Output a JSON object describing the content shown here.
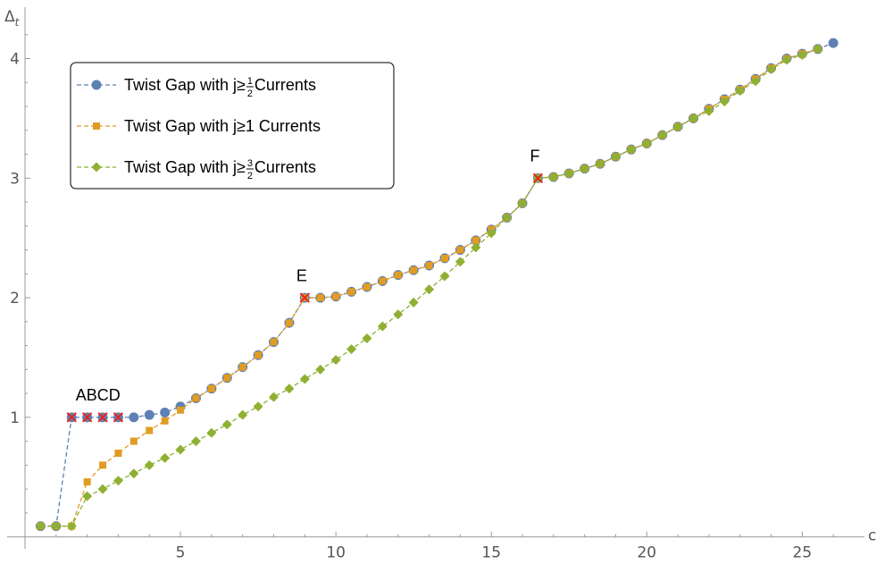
{
  "chart_data": {
    "type": "line",
    "title": "",
    "xlabel": "c",
    "ylabel": "Δt",
    "ylabel_main": "Δ",
    "ylabel_sub": "t",
    "xlim": [
      0,
      27
    ],
    "ylim": [
      -0.1,
      4.4
    ],
    "xticks": [
      5,
      10,
      15,
      20,
      25
    ],
    "yticks": [
      1,
      2,
      3,
      4
    ],
    "grid": false,
    "legend_position": "top-left",
    "series": [
      {
        "name": "Twist Gap with j≥½ Currents",
        "legend_prefix": "Twist Gap with j≥",
        "legend_frac": [
          "1",
          "2"
        ],
        "legend_suffix": " Currents",
        "color": "#5e81b5",
        "marker": "circle",
        "x": [
          0.5,
          1,
          1.5,
          2,
          2.5,
          3,
          3.5,
          4,
          4.5,
          5,
          5.5,
          6,
          6.5,
          7,
          7.5,
          8,
          8.5,
          9,
          9.5,
          10,
          10.5,
          11,
          11.5,
          12,
          12.5,
          13,
          13.5,
          14,
          14.5,
          15,
          15.5,
          16,
          16.5,
          17,
          17.5,
          18,
          18.5,
          19,
          19.5,
          20,
          20.5,
          21,
          21.5,
          22,
          22.5,
          23,
          23.5,
          24,
          24.5,
          25,
          25.5,
          26
        ],
        "y": [
          0.09,
          0.09,
          1.0,
          1.0,
          1.0,
          1.0,
          1.0,
          1.02,
          1.04,
          1.09,
          1.16,
          1.24,
          1.33,
          1.42,
          1.52,
          1.63,
          1.79,
          2.0,
          2.0,
          2.01,
          2.05,
          2.09,
          2.14,
          2.19,
          2.23,
          2.27,
          2.33,
          2.4,
          2.48,
          2.57,
          2.67,
          2.79,
          3.0,
          3.01,
          3.04,
          3.08,
          3.12,
          3.18,
          3.24,
          3.29,
          3.36,
          3.43,
          3.5,
          3.58,
          3.66,
          3.74,
          3.83,
          3.92,
          4.0,
          4.04,
          4.08,
          4.13
        ]
      },
      {
        "name": "Twist Gap with j≥1 Currents",
        "legend_prefix": "Twist Gap with j≥1 Currents",
        "legend_frac": null,
        "legend_suffix": "",
        "color": "#e19c24",
        "marker": "square",
        "x": [
          0.5,
          1,
          1.5,
          2,
          2.5,
          3,
          3.5,
          4,
          4.5,
          5,
          5.5,
          6,
          6.5,
          7,
          7.5,
          8,
          8.5,
          9,
          9.5,
          10,
          10.5,
          11,
          11.5,
          12,
          12.5,
          13,
          13.5,
          14,
          14.5,
          15,
          15.5,
          16,
          16.5,
          17,
          17.5,
          18,
          18.5,
          19,
          19.5,
          20,
          20.5,
          21,
          21.5,
          22,
          22.5,
          23,
          23.5,
          24,
          24.5,
          25,
          25.5
        ],
        "y": [
          0.09,
          0.09,
          0.09,
          0.46,
          0.6,
          0.7,
          0.8,
          0.89,
          0.97,
          1.06,
          1.16,
          1.24,
          1.33,
          1.42,
          1.52,
          1.63,
          1.79,
          2.0,
          2.0,
          2.01,
          2.05,
          2.09,
          2.14,
          2.19,
          2.23,
          2.27,
          2.33,
          2.4,
          2.48,
          2.57,
          2.67,
          2.79,
          3.0,
          3.01,
          3.04,
          3.08,
          3.12,
          3.18,
          3.24,
          3.29,
          3.36,
          3.43,
          3.5,
          3.58,
          3.66,
          3.74,
          3.83,
          3.92,
          4.0,
          4.04,
          4.08
        ]
      },
      {
        "name": "Twist Gap with j≥3/2 Currents",
        "legend_prefix": "Twist Gap with j≥",
        "legend_frac": [
          "3",
          "2"
        ],
        "legend_suffix": " Currents",
        "color": "#8fb032",
        "marker": "diamond",
        "x": [
          0.5,
          1,
          1.5,
          2,
          2.5,
          3,
          3.5,
          4,
          4.5,
          5,
          5.5,
          6,
          6.5,
          7,
          7.5,
          8,
          8.5,
          9,
          9.5,
          10,
          10.5,
          11,
          11.5,
          12,
          12.5,
          13,
          13.5,
          14,
          14.5,
          15,
          15.5,
          16,
          16.5,
          17,
          17.5,
          18,
          18.5,
          19,
          19.5,
          20,
          20.5,
          21,
          21.5,
          22,
          22.5,
          23,
          23.5,
          24,
          24.5,
          25,
          25.5
        ],
        "y": [
          0.09,
          0.09,
          0.09,
          0.34,
          0.4,
          0.47,
          0.53,
          0.6,
          0.66,
          0.73,
          0.8,
          0.87,
          0.94,
          1.02,
          1.09,
          1.17,
          1.24,
          1.32,
          1.4,
          1.48,
          1.57,
          1.66,
          1.76,
          1.86,
          1.96,
          2.07,
          2.18,
          2.3,
          2.42,
          2.54,
          2.67,
          2.79,
          3.0,
          3.01,
          3.04,
          3.08,
          3.12,
          3.18,
          3.24,
          3.29,
          3.36,
          3.43,
          3.5,
          3.56,
          3.64,
          3.73,
          3.81,
          3.91,
          3.99,
          4.03,
          4.08
        ]
      }
    ],
    "marked_points": [
      {
        "x": 1.5,
        "y": 1.0
      },
      {
        "x": 2,
        "y": 1.0
      },
      {
        "x": 2.5,
        "y": 1.0
      },
      {
        "x": 3,
        "y": 1.0
      },
      {
        "x": 9,
        "y": 2.0
      },
      {
        "x": 16.5,
        "y": 3.0
      }
    ],
    "marked_color": "#e8241c",
    "annotations": [
      {
        "text": "ABCD",
        "x": 2.35,
        "y": 1.14
      },
      {
        "text": "E",
        "x": 8.9,
        "y": 2.14
      },
      {
        "text": "F",
        "x": 16.4,
        "y": 3.14
      }
    ]
  }
}
